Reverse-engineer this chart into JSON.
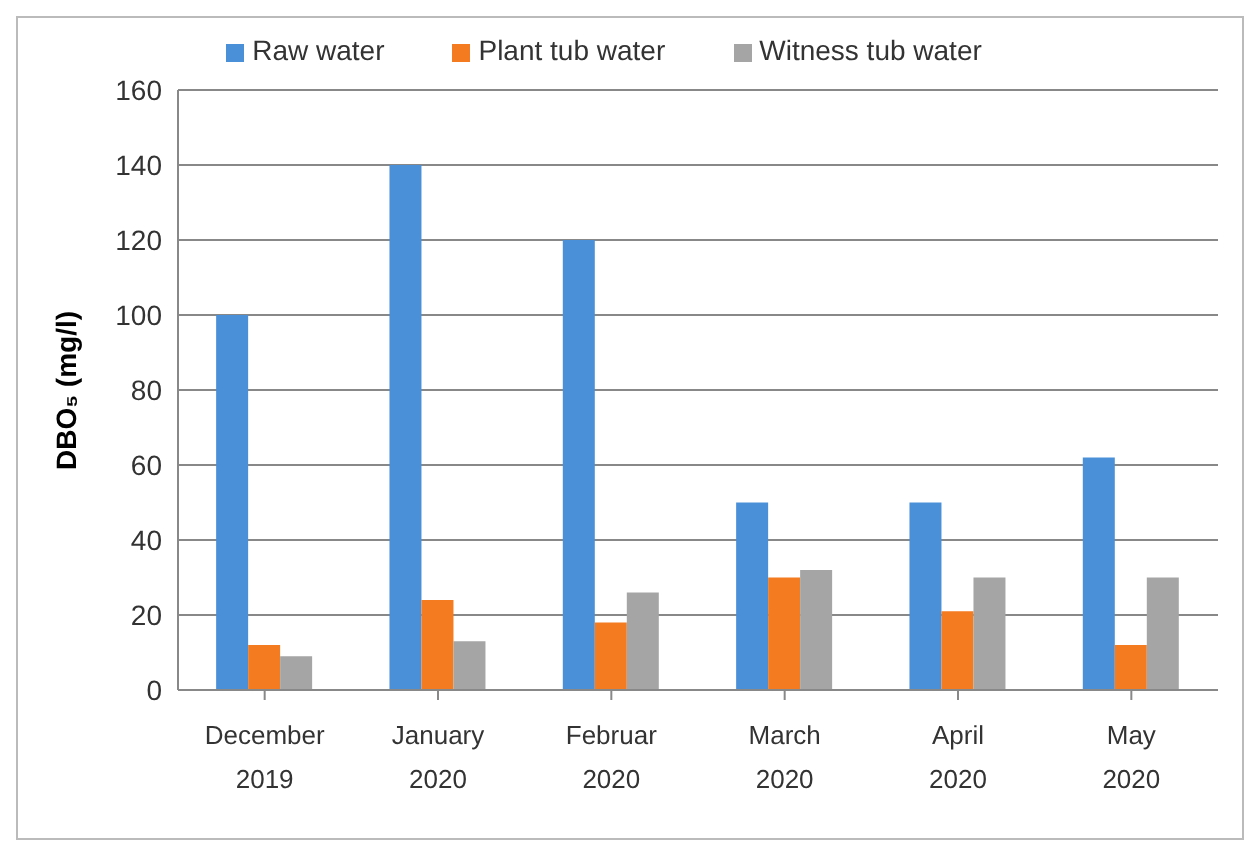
{
  "chart_data": {
    "type": "bar",
    "ylabel": "DBO₅ (mg/l)",
    "categories": [
      "December 2019",
      "January 2020",
      "Februar 2020",
      "March 2020",
      "April 2020",
      "May 2020"
    ],
    "series": [
      {
        "name": "Raw water",
        "color": "#4a90d9",
        "values": [
          100,
          140,
          120,
          50,
          50,
          62
        ]
      },
      {
        "name": "Plant tub water",
        "color": "#f47b20",
        "values": [
          12,
          24,
          18,
          30,
          21,
          12
        ]
      },
      {
        "name": "Witness tub water",
        "color": "#a5a5a5",
        "values": [
          9,
          13,
          26,
          32,
          30,
          30
        ]
      }
    ],
    "ylim": [
      0,
      160
    ],
    "yticks": [
      0,
      20,
      40,
      60,
      80,
      100,
      120,
      140,
      160
    ],
    "grid": "y",
    "legend": "top"
  }
}
